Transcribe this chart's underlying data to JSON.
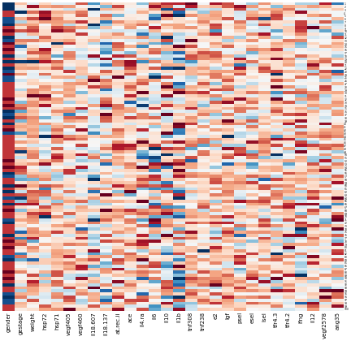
{
  "columns": [
    "gender",
    "gestage",
    "weight",
    "hsp72",
    "hsp71",
    "vegf405",
    "vegf460",
    "il18.607",
    "il18.137",
    "at.rec.ii",
    "ace",
    "il4.ra",
    "il6",
    "il10",
    "il1b",
    "tnf308",
    "tnf238",
    "e2",
    "lgf",
    "psel",
    "esel",
    "lsel",
    "tfr4.3",
    "tfr4.2",
    "ifng",
    "il12",
    "vegf2578",
    "ang35"
  ],
  "n_rows": 100,
  "n_cols": 28,
  "colormap_colors": [
    "#053061",
    "#2166ac",
    "#4393c3",
    "#92c5de",
    "#d1e5f0",
    "#f7f7f7",
    "#fddbc7",
    "#f4a582",
    "#d6604d",
    "#b2182b",
    "#67001f"
  ],
  "figsize": [
    4.32,
    4.2
  ],
  "dpi": 100,
  "heatmap_vmin": -2.5,
  "heatmap_vmax": 2.5,
  "background_color": "#ffffff",
  "row_label_fontsize": 2.2,
  "col_label_fontsize": 5.0,
  "base_mean": 0.6,
  "base_std": 0.55
}
